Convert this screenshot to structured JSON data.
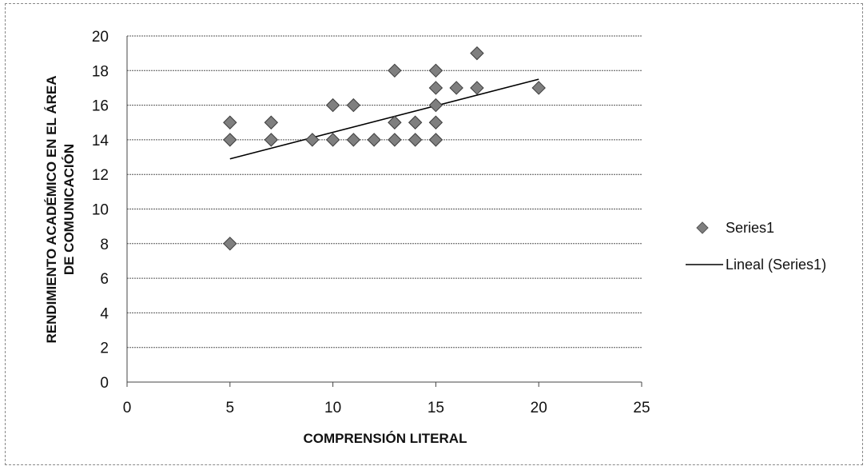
{
  "chart_data": {
    "type": "scatter",
    "title": "",
    "xlabel": "COMPRENSIÓN LITERAL",
    "ylabel_line1": "RENDIMIENTO ACADÉMICO EN EL ÁREA",
    "ylabel_line2": "DE COMUNICACIÓN",
    "xlim": [
      0,
      25
    ],
    "ylim": [
      0,
      20
    ],
    "x_ticks": [
      0,
      5,
      10,
      15,
      20,
      25
    ],
    "y_ticks": [
      0,
      2,
      4,
      6,
      8,
      10,
      12,
      14,
      16,
      18,
      20
    ],
    "grid": "horizontal",
    "legend_position": "right",
    "series": [
      {
        "name": "Series1",
        "marker": "diamond",
        "color": "#7f7f7f",
        "points": [
          [
            5,
            15
          ],
          [
            5,
            14
          ],
          [
            5,
            8
          ],
          [
            7,
            15
          ],
          [
            7,
            14
          ],
          [
            9,
            14
          ],
          [
            10,
            16
          ],
          [
            10,
            14
          ],
          [
            11,
            16
          ],
          [
            11,
            14
          ],
          [
            12,
            14
          ],
          [
            13,
            18
          ],
          [
            13,
            15
          ],
          [
            13,
            14
          ],
          [
            14,
            15
          ],
          [
            14,
            14
          ],
          [
            15,
            18
          ],
          [
            15,
            17
          ],
          [
            15,
            16
          ],
          [
            15,
            15
          ],
          [
            15,
            14
          ],
          [
            16,
            17
          ],
          [
            17,
            19
          ],
          [
            17,
            17
          ],
          [
            20,
            17
          ]
        ]
      }
    ],
    "trendline": {
      "name": "Lineal (Series1)",
      "color": "#000000",
      "from": [
        5,
        12.9
      ],
      "to": [
        20,
        17.5
      ]
    }
  }
}
